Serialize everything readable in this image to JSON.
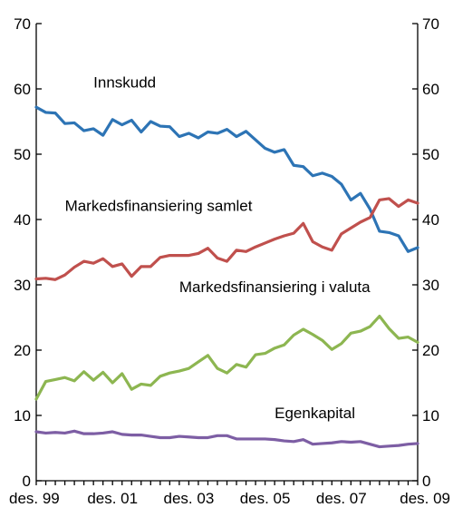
{
  "chart_data": {
    "type": "line",
    "title": "",
    "xlabel": "",
    "ylabel": "",
    "ylim": [
      0,
      70
    ],
    "y_ticks": [
      0,
      10,
      20,
      30,
      40,
      50,
      60,
      70
    ],
    "right_axis_mirrored": true,
    "grid": false,
    "legend": "none",
    "x_range": [
      "1999Q4",
      "2009Q4"
    ],
    "x_ticks": [
      {
        "x": "1999Q4",
        "label": "des. 99"
      },
      {
        "x": "2001Q4",
        "label": "des. 01"
      },
      {
        "x": "2003Q4",
        "label": "des. 03"
      },
      {
        "x": "2005Q4",
        "label": "des. 05"
      },
      {
        "x": "2007Q4",
        "label": "des. 07"
      },
      {
        "x": "2009Q4",
        "label": "des. 09"
      }
    ],
    "x": [
      "1999Q4",
      "2000Q1",
      "2000Q2",
      "2000Q3",
      "2000Q4",
      "2001Q1",
      "2001Q2",
      "2001Q3",
      "2001Q4",
      "2002Q1",
      "2002Q2",
      "2002Q3",
      "2002Q4",
      "2003Q1",
      "2003Q2",
      "2003Q3",
      "2003Q4",
      "2004Q1",
      "2004Q2",
      "2004Q3",
      "2004Q4",
      "2005Q1",
      "2005Q2",
      "2005Q3",
      "2005Q4",
      "2006Q1",
      "2006Q2",
      "2006Q3",
      "2006Q4",
      "2007Q1",
      "2007Q2",
      "2007Q3",
      "2007Q4",
      "2008Q1",
      "2008Q2",
      "2008Q3",
      "2008Q4",
      "2009Q1",
      "2009Q2",
      "2009Q3",
      "2009Q4"
    ],
    "series": [
      {
        "name": "Innskudd",
        "color": "#2d74b5",
        "values": [
          57.2,
          56.4,
          56.3,
          54.7,
          54.8,
          53.6,
          53.9,
          52.9,
          55.3,
          54.5,
          55.2,
          53.4,
          55.0,
          54.3,
          54.2,
          52.7,
          53.2,
          52.5,
          53.4,
          53.2,
          53.8,
          52.7,
          53.5,
          52.2,
          50.9,
          50.3,
          50.7,
          48.3,
          48.1,
          46.7,
          47.1,
          46.6,
          45.4,
          43.0,
          44.0,
          41.6,
          38.2,
          38.0,
          37.5,
          35.1,
          35.7
        ],
        "label": {
          "x": "2001Q2",
          "y": 60.2,
          "anchor": "start"
        }
      },
      {
        "name": "Markedsfinansiering samlet",
        "color": "#c0504d",
        "values": [
          30.9,
          31.0,
          30.8,
          31.5,
          32.7,
          33.6,
          33.3,
          34.0,
          32.8,
          33.2,
          31.3,
          32.8,
          32.8,
          34.2,
          34.5,
          34.5,
          34.5,
          34.8,
          35.6,
          34.1,
          33.6,
          35.3,
          35.1,
          35.8,
          36.4,
          37.0,
          37.5,
          37.9,
          39.4,
          36.6,
          35.8,
          35.3,
          37.8,
          38.7,
          39.6,
          40.3,
          43.0,
          43.2,
          42.0,
          43.0,
          42.5
        ],
        "label": {
          "x": "2000Q3",
          "y": 41.3,
          "anchor": "start"
        }
      },
      {
        "name": "Markedsfinansiering i valuta",
        "color": "#8db651",
        "values": [
          12.5,
          15.2,
          15.5,
          15.8,
          15.3,
          16.7,
          15.4,
          16.6,
          15.0,
          16.4,
          14.0,
          14.8,
          14.6,
          16.0,
          16.5,
          16.8,
          17.2,
          18.2,
          19.2,
          17.2,
          16.5,
          17.8,
          17.4,
          19.3,
          19.5,
          20.3,
          20.8,
          22.3,
          23.2,
          22.4,
          21.5,
          20.1,
          21.0,
          22.6,
          22.9,
          23.6,
          25.2,
          23.3,
          21.8,
          22.0,
          21.2
        ],
        "label": {
          "x": "2003Q3",
          "y": 28.9,
          "anchor": "start"
        }
      },
      {
        "name": "Egenkapital",
        "color": "#7d5ea4",
        "values": [
          7.5,
          7.3,
          7.4,
          7.3,
          7.6,
          7.2,
          7.2,
          7.3,
          7.5,
          7.1,
          7.0,
          7.0,
          6.8,
          6.6,
          6.6,
          6.8,
          6.7,
          6.6,
          6.6,
          6.9,
          6.9,
          6.4,
          6.4,
          6.4,
          6.4,
          6.3,
          6.1,
          6.0,
          6.3,
          5.6,
          5.7,
          5.8,
          6.0,
          5.9,
          6.0,
          5.6,
          5.2,
          5.3,
          5.4,
          5.6,
          5.7
        ],
        "label": {
          "x": "2006Q1",
          "y": 9.6,
          "anchor": "start"
        }
      }
    ]
  }
}
